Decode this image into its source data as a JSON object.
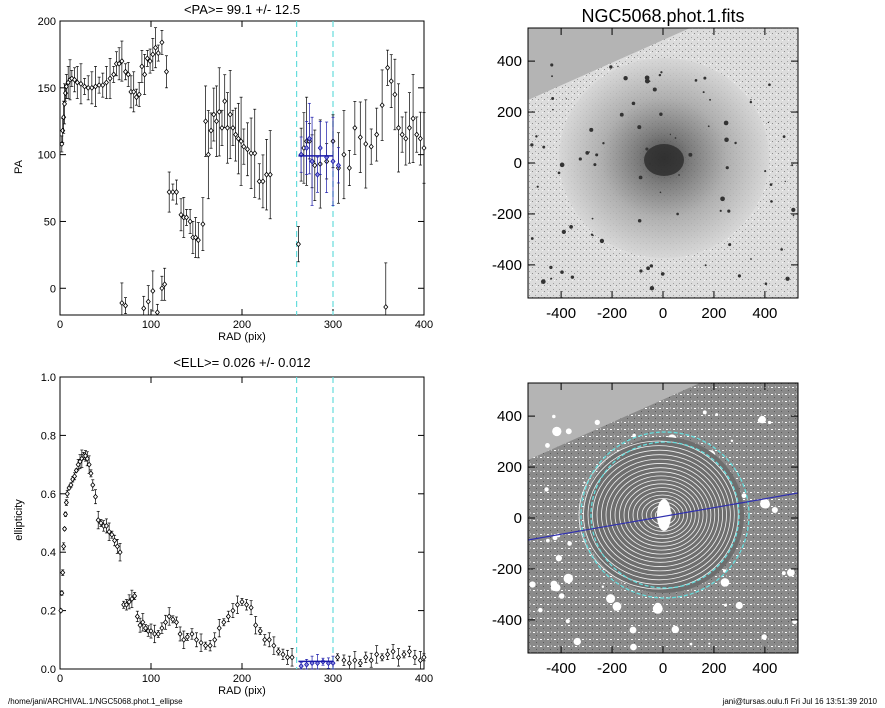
{
  "chart_data": [
    {
      "type": "scatter",
      "title": "<PA>=  99.1 +/-  12.5",
      "xlabel": "RAD (pix)",
      "ylabel": "PA",
      "xlim": [
        0,
        400
      ],
      "ylim": [
        -20,
        200
      ],
      "xticks": [
        0,
        100,
        200,
        300,
        400
      ],
      "yticks": [
        0,
        50,
        100,
        150,
        200
      ],
      "vlines": [
        260,
        300
      ],
      "fit_segment": {
        "x": [
          262,
          300
        ],
        "y": 99.1
      },
      "series": [
        {
          "color": "#000000",
          "points": [
            [
              2,
              108
            ],
            [
              3,
              118
            ],
            [
              4,
              128
            ],
            [
              5,
              138
            ],
            [
              6,
              146
            ],
            [
              7,
              151
            ],
            [
              9,
              154
            ],
            [
              11,
              156
            ],
            [
              13,
              157
            ],
            [
              16,
              156
            ],
            [
              19,
              154
            ],
            [
              23,
              153
            ],
            [
              27,
              151
            ],
            [
              31,
              150
            ],
            [
              35,
              150
            ],
            [
              39,
              151
            ],
            [
              43,
              152
            ],
            [
              47,
              152
            ],
            [
              51,
              154
            ],
            [
              55,
              157
            ],
            [
              59,
              160
            ],
            [
              62,
              168
            ],
            [
              65,
              168
            ],
            [
              68,
              170
            ],
            [
              72,
              162
            ],
            [
              75,
              160
            ],
            [
              78,
              147
            ],
            [
              81,
              147
            ],
            [
              84,
              143
            ],
            [
              87,
              145
            ],
            [
              90,
              166
            ],
            [
              93,
              160
            ],
            [
              96,
              172
            ],
            [
              99,
              170
            ],
            [
              102,
              175
            ],
            [
              105,
              180
            ],
            [
              108,
              176
            ],
            [
              112,
              184
            ],
            [
              117,
              162
            ],
            [
              120,
              72
            ],
            [
              124,
              72
            ],
            [
              128,
              72
            ],
            [
              133,
              55
            ],
            [
              136,
              53
            ],
            [
              139,
              53
            ],
            [
              143,
              50
            ],
            [
              146,
              38
            ],
            [
              149,
              38
            ],
            [
              152,
              36
            ],
            [
              157,
              48
            ],
            [
              160,
              125
            ],
            [
              163,
              100
            ],
            [
              166,
              118
            ],
            [
              169,
              130
            ],
            [
              172,
              125
            ],
            [
              175,
              132
            ],
            [
              178,
              120
            ],
            [
              181,
              140
            ],
            [
              184,
              120
            ],
            [
              187,
              130
            ],
            [
              190,
              120
            ],
            [
              193,
              115
            ],
            [
              196,
              112
            ],
            [
              199,
              110
            ],
            [
              202,
              106
            ],
            [
              206,
              104
            ],
            [
              210,
              101
            ],
            [
              214,
              101
            ],
            [
              219,
              80
            ],
            [
              223,
              80
            ],
            [
              227,
              85
            ],
            [
              231,
              85
            ],
            [
              262,
              33
            ],
            [
              265,
              100
            ],
            [
              268,
              105
            ],
            [
              271,
              110
            ],
            [
              274,
              110
            ],
            [
              277,
              95
            ],
            [
              280,
              92
            ],
            [
              286,
              93
            ],
            [
              293,
              95
            ],
            [
              300,
              110
            ],
            [
              306,
              90
            ],
            [
              312,
              100
            ],
            [
              318,
              90
            ],
            [
              324,
              120
            ],
            [
              330,
              113
            ],
            [
              336,
              108
            ],
            [
              342,
              106
            ],
            [
              348,
              115
            ],
            [
              354,
              137
            ],
            [
              358,
              -14
            ],
            [
              360,
              165
            ],
            [
              364,
              155
            ],
            [
              368,
              145
            ],
            [
              372,
              120
            ],
            [
              376,
              115
            ],
            [
              380,
              112
            ],
            [
              384,
              120
            ],
            [
              388,
              127
            ],
            [
              392,
              115
            ],
            [
              396,
              112
            ],
            [
              400,
              105
            ],
            [
              68,
              -11
            ],
            [
              72,
              -13
            ],
            [
              92,
              -15
            ],
            [
              97,
              -10
            ],
            [
              102,
              -2
            ],
            [
              107,
              -18
            ],
            [
              112,
              0
            ],
            [
              115,
              3
            ]
          ]
        },
        {
          "color": "#1a1aaa",
          "points": [
            [
              265,
              100
            ],
            [
              271,
              105
            ],
            [
              274,
              112
            ],
            [
              277,
              95
            ],
            [
              283,
              85
            ],
            [
              286,
              105
            ],
            [
              293,
              98
            ],
            [
              300,
              95
            ],
            [
              306,
              92
            ]
          ]
        }
      ]
    },
    {
      "type": "scatter",
      "title": "<ELL>= 0.026 +/-  0.012",
      "xlabel": "RAD (pix)",
      "ylabel": "ellipticity",
      "xlim": [
        0,
        400
      ],
      "ylim": [
        0,
        1
      ],
      "xticks": [
        0,
        100,
        200,
        300,
        400
      ],
      "yticks": [
        0.0,
        0.2,
        0.4,
        0.6,
        0.8,
        1.0
      ],
      "vlines": [
        260,
        300
      ],
      "fit_segment": {
        "x": [
          262,
          300
        ],
        "y": 0.026
      },
      "series": [
        {
          "color": "#000000",
          "points": [
            [
              1,
              0.2
            ],
            [
              2,
              0.26
            ],
            [
              3,
              0.33
            ],
            [
              4,
              0.42
            ],
            [
              5,
              0.48
            ],
            [
              6,
              0.53
            ],
            [
              7,
              0.57
            ],
            [
              8,
              0.6
            ],
            [
              10,
              0.62
            ],
            [
              12,
              0.63
            ],
            [
              14,
              0.65
            ],
            [
              16,
              0.66
            ],
            [
              18,
              0.68
            ],
            [
              20,
              0.7
            ],
            [
              22,
              0.71
            ],
            [
              24,
              0.72
            ],
            [
              26,
              0.73
            ],
            [
              28,
              0.73
            ],
            [
              30,
              0.72
            ],
            [
              32,
              0.7
            ],
            [
              34,
              0.67
            ],
            [
              36,
              0.63
            ],
            [
              39,
              0.59
            ],
            [
              42,
              0.51
            ],
            [
              45,
              0.5
            ],
            [
              48,
              0.49
            ],
            [
              51,
              0.49
            ],
            [
              54,
              0.47
            ],
            [
              57,
              0.46
            ],
            [
              60,
              0.44
            ],
            [
              63,
              0.42
            ],
            [
              66,
              0.4
            ],
            [
              70,
              0.22
            ],
            [
              73,
              0.22
            ],
            [
              76,
              0.23
            ],
            [
              79,
              0.24
            ],
            [
              82,
              0.25
            ],
            [
              85,
              0.18
            ],
            [
              88,
              0.15
            ],
            [
              91,
              0.16
            ],
            [
              94,
              0.14
            ],
            [
              97,
              0.13
            ],
            [
              100,
              0.13
            ],
            [
              104,
              0.12
            ],
            [
              108,
              0.12
            ],
            [
              112,
              0.14
            ],
            [
              116,
              0.16
            ],
            [
              120,
              0.18
            ],
            [
              124,
              0.17
            ],
            [
              128,
              0.16
            ],
            [
              132,
              0.12
            ],
            [
              136,
              0.1
            ],
            [
              140,
              0.11
            ],
            [
              145,
              0.12
            ],
            [
              150,
              0.1
            ],
            [
              155,
              0.09
            ],
            [
              160,
              0.08
            ],
            [
              165,
              0.08
            ],
            [
              170,
              0.1
            ],
            [
              175,
              0.14
            ],
            [
              180,
              0.16
            ],
            [
              185,
              0.18
            ],
            [
              190,
              0.2
            ],
            [
              195,
              0.22
            ],
            [
              200,
              0.23
            ],
            [
              205,
              0.22
            ],
            [
              210,
              0.21
            ],
            [
              215,
              0.15
            ],
            [
              220,
              0.13
            ],
            [
              225,
              0.1
            ],
            [
              230,
              0.1
            ],
            [
              235,
              0.08
            ],
            [
              240,
              0.06
            ],
            [
              245,
              0.05
            ],
            [
              250,
              0.04
            ],
            [
              255,
              0.04
            ],
            [
              305,
              0.04
            ],
            [
              312,
              0.03
            ],
            [
              318,
              0.02
            ],
            [
              324,
              0.03
            ],
            [
              330,
              0.02
            ],
            [
              336,
              0.04
            ],
            [
              342,
              0.03
            ],
            [
              348,
              0.05
            ],
            [
              354,
              0.04
            ],
            [
              360,
              0.05
            ],
            [
              366,
              0.06
            ],
            [
              372,
              0.04
            ],
            [
              378,
              0.05
            ],
            [
              384,
              0.06
            ],
            [
              390,
              0.04
            ],
            [
              396,
              0.03
            ],
            [
              400,
              0.04
            ]
          ]
        },
        {
          "color": "#1a1aaa",
          "points": [
            [
              265,
              0.01
            ],
            [
              271,
              0.015
            ],
            [
              277,
              0.02
            ],
            [
              283,
              0.02
            ],
            [
              289,
              0.025
            ],
            [
              295,
              0.02
            ],
            [
              300,
              0.02
            ]
          ]
        }
      ]
    },
    {
      "type": "heatmap",
      "title": "NGC5068.phot.1.fits",
      "xlim": [
        -530,
        530
      ],
      "ylim": [
        -530,
        530
      ],
      "xticks": [
        -400,
        -200,
        0,
        200,
        400
      ],
      "yticks": [
        -400,
        -200,
        0,
        200,
        400
      ]
    },
    {
      "type": "heatmap",
      "title": "",
      "xlim": [
        -530,
        530
      ],
      "ylim": [
        -530,
        530
      ],
      "xticks": [
        -400,
        -200,
        0,
        200,
        400
      ],
      "yticks": [
        -400,
        -200,
        0,
        200,
        400
      ]
    }
  ],
  "footer": {
    "left": "/home/jani/ARCHIVAL.1/NGC5068.phot.1_ellipse",
    "right": "jani@tursas.oulu.fi  Fri Jul 16 13:51:39 2010"
  }
}
